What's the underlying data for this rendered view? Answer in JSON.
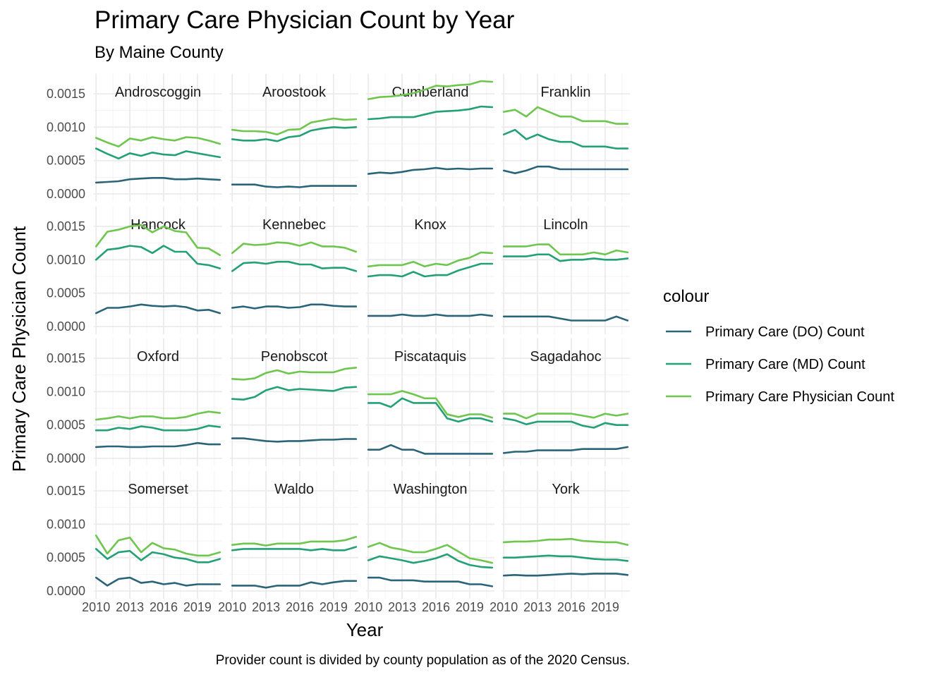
{
  "chart_data": {
    "type": "line",
    "title": "Primary Care Physician Count by Year",
    "subtitle": "By Maine County",
    "xlabel": "Year",
    "ylabel": "Primary Care Physician Count",
    "caption": "Provider count is divided by county population as of the 2020 Census.",
    "legend_title": "colour",
    "legend_position": "right",
    "grid": true,
    "x": [
      2010,
      2011,
      2012,
      2013,
      2014,
      2015,
      2016,
      2017,
      2018,
      2019,
      2020,
      2021
    ],
    "xlim": [
      2009.8,
      2021.2
    ],
    "xticks": [
      "2010",
      "2013",
      "2016",
      "2019"
    ],
    "ylim": [
      0,
      0.0018
    ],
    "yticks": [
      "0.0000",
      "0.0005",
      "0.0010",
      "0.0015"
    ],
    "series_names": [
      "Primary Care (DO) Count",
      "Primary Care (MD) Count",
      "Primary Care Physician Count"
    ],
    "series_colors": [
      "#2a6478",
      "#23a078",
      "#6ec64e"
    ],
    "panels": [
      {
        "name": "Androscoggin",
        "do": [
          0.00017,
          0.00018,
          0.00019,
          0.00022,
          0.00023,
          0.00024,
          0.00024,
          0.00022,
          0.00022,
          0.00023,
          0.00022,
          0.00021
        ],
        "md": [
          0.00068,
          0.0006,
          0.00053,
          0.00061,
          0.00057,
          0.00062,
          0.00059,
          0.00058,
          0.00064,
          0.00061,
          0.00058,
          0.00055
        ],
        "total": [
          0.00084,
          0.00077,
          0.00071,
          0.00083,
          0.0008,
          0.00085,
          0.00082,
          0.0008,
          0.00085,
          0.00084,
          0.0008,
          0.00075
        ]
      },
      {
        "name": "Aroostook",
        "do": [
          0.00014,
          0.00014,
          0.00014,
          0.00011,
          0.0001,
          0.00011,
          0.0001,
          0.00012,
          0.00012,
          0.00012,
          0.00012,
          0.00012
        ],
        "md": [
          0.00082,
          0.0008,
          0.0008,
          0.00082,
          0.00079,
          0.00085,
          0.00087,
          0.00095,
          0.00098,
          0.001,
          0.00099,
          0.001
        ],
        "total": [
          0.00096,
          0.00094,
          0.00094,
          0.00093,
          0.00089,
          0.00096,
          0.00097,
          0.00107,
          0.0011,
          0.00113,
          0.00111,
          0.00112
        ]
      },
      {
        "name": "Cumberland",
        "do": [
          0.0003,
          0.00032,
          0.00031,
          0.00033,
          0.00036,
          0.00037,
          0.00039,
          0.00037,
          0.00038,
          0.00037,
          0.00038,
          0.00038
        ],
        "md": [
          0.00112,
          0.00113,
          0.00115,
          0.00115,
          0.00115,
          0.00119,
          0.00123,
          0.00124,
          0.00125,
          0.00127,
          0.00131,
          0.0013
        ],
        "total": [
          0.00142,
          0.00145,
          0.00146,
          0.00148,
          0.00151,
          0.00156,
          0.00162,
          0.00161,
          0.00163,
          0.00164,
          0.00169,
          0.00168
        ]
      },
      {
        "name": "Franklin",
        "do": [
          0.00035,
          0.00031,
          0.00035,
          0.00041,
          0.00041,
          0.00037,
          0.00037,
          0.00037,
          0.00037,
          0.00037,
          0.00037,
          0.00037
        ],
        "md": [
          0.00089,
          0.00096,
          0.00082,
          0.00089,
          0.00082,
          0.00078,
          0.00078,
          0.00071,
          0.00071,
          0.00071,
          0.00068,
          0.00068
        ],
        "total": [
          0.00123,
          0.00126,
          0.00116,
          0.0013,
          0.00123,
          0.00116,
          0.00116,
          0.00109,
          0.00109,
          0.00109,
          0.00105,
          0.00105
        ]
      },
      {
        "name": "Hancock",
        "do": [
          0.0002,
          0.00028,
          0.00028,
          0.0003,
          0.00033,
          0.00031,
          0.0003,
          0.00031,
          0.00029,
          0.00024,
          0.00025,
          0.0002
        ],
        "md": [
          0.001,
          0.00115,
          0.00117,
          0.00121,
          0.00119,
          0.0011,
          0.00121,
          0.00112,
          0.00112,
          0.00094,
          0.00092,
          0.00087
        ],
        "total": [
          0.0012,
          0.00142,
          0.00145,
          0.0015,
          0.00152,
          0.00141,
          0.0015,
          0.00143,
          0.00141,
          0.00118,
          0.00117,
          0.00107
        ]
      },
      {
        "name": "Kennebec",
        "do": [
          0.00028,
          0.0003,
          0.00027,
          0.0003,
          0.0003,
          0.00028,
          0.00029,
          0.00033,
          0.00033,
          0.00031,
          0.0003,
          0.0003
        ],
        "md": [
          0.00083,
          0.00095,
          0.00096,
          0.00094,
          0.00097,
          0.00097,
          0.00093,
          0.00093,
          0.00087,
          0.00088,
          0.00088,
          0.00083
        ],
        "total": [
          0.0011,
          0.00124,
          0.00122,
          0.00123,
          0.00126,
          0.00125,
          0.00121,
          0.00126,
          0.0012,
          0.0012,
          0.00118,
          0.00112
        ]
      },
      {
        "name": "Knox",
        "do": [
          0.00016,
          0.00016,
          0.00016,
          0.00018,
          0.00016,
          0.00016,
          0.00018,
          0.00016,
          0.00016,
          0.00016,
          0.00018,
          0.00016
        ],
        "md": [
          0.00075,
          0.00077,
          0.00077,
          0.00075,
          0.00082,
          0.00075,
          0.00077,
          0.00077,
          0.00084,
          0.00089,
          0.00094,
          0.00094
        ],
        "total": [
          0.0009,
          0.00092,
          0.00092,
          0.00092,
          0.00097,
          0.0009,
          0.00094,
          0.00092,
          0.00099,
          0.00103,
          0.00111,
          0.0011
        ]
      },
      {
        "name": "Lincoln",
        "do": [
          0.00015,
          0.00015,
          0.00015,
          0.00015,
          0.00015,
          0.00012,
          9e-05,
          9e-05,
          9e-05,
          9e-05,
          0.00015,
          9e-05
        ],
        "md": [
          0.00105,
          0.00105,
          0.00105,
          0.00108,
          0.00108,
          0.00098,
          0.001,
          0.001,
          0.00102,
          0.001,
          0.001,
          0.00102
        ],
        "total": [
          0.0012,
          0.0012,
          0.0012,
          0.00123,
          0.00123,
          0.00108,
          0.00108,
          0.00108,
          0.00111,
          0.00108,
          0.00114,
          0.00111
        ]
      },
      {
        "name": "Oxford",
        "do": [
          0.00017,
          0.00018,
          0.00018,
          0.00017,
          0.00017,
          0.00018,
          0.00018,
          0.00018,
          0.0002,
          0.00023,
          0.00021,
          0.00021
        ],
        "md": [
          0.00042,
          0.00042,
          0.00046,
          0.00044,
          0.00048,
          0.00046,
          0.00042,
          0.00042,
          0.00042,
          0.00044,
          0.00049,
          0.00047
        ],
        "total": [
          0.00058,
          0.0006,
          0.00063,
          0.0006,
          0.00063,
          0.00063,
          0.0006,
          0.0006,
          0.00062,
          0.00067,
          0.0007,
          0.00068
        ]
      },
      {
        "name": "Penobscot",
        "do": [
          0.0003,
          0.0003,
          0.00028,
          0.00026,
          0.00025,
          0.00026,
          0.00026,
          0.00027,
          0.00028,
          0.00028,
          0.00029,
          0.00029
        ],
        "md": [
          0.00089,
          0.00088,
          0.00092,
          0.00102,
          0.00107,
          0.00102,
          0.00104,
          0.00103,
          0.00102,
          0.00101,
          0.00106,
          0.00107
        ],
        "total": [
          0.00119,
          0.00118,
          0.0012,
          0.00128,
          0.00132,
          0.00127,
          0.0013,
          0.00129,
          0.00129,
          0.00129,
          0.00134,
          0.00136
        ]
      },
      {
        "name": "Piscataquis",
        "do": [
          0.00013,
          0.00013,
          0.0002,
          0.00013,
          0.00013,
          7e-05,
          7e-05,
          7e-05,
          7e-05,
          7e-05,
          7e-05,
          7e-05
        ],
        "md": [
          0.00083,
          0.00083,
          0.00077,
          0.0009,
          0.00083,
          0.00083,
          0.00083,
          0.0006,
          0.00055,
          0.0006,
          0.0006,
          0.00055
        ],
        "total": [
          0.00096,
          0.00096,
          0.00096,
          0.00101,
          0.00096,
          0.0009,
          0.0009,
          0.00066,
          0.00062,
          0.00066,
          0.00066,
          0.00061
        ]
      },
      {
        "name": "Sagadahoc",
        "do": [
          8e-05,
          0.0001,
          0.0001,
          0.00012,
          0.00012,
          0.00012,
          0.00012,
          0.00014,
          0.00014,
          0.00014,
          0.00014,
          0.00017
        ],
        "md": [
          0.0006,
          0.00057,
          0.00051,
          0.00055,
          0.00055,
          0.00055,
          0.00055,
          0.00049,
          0.00046,
          0.00053,
          0.0005,
          0.0005
        ],
        "total": [
          0.00067,
          0.00067,
          0.0006,
          0.00067,
          0.00067,
          0.00067,
          0.00067,
          0.00064,
          0.00061,
          0.00067,
          0.00064,
          0.00067
        ]
      },
      {
        "name": "Somerset",
        "do": [
          0.0002,
          8e-05,
          0.00018,
          0.0002,
          0.00012,
          0.00014,
          0.0001,
          0.00012,
          8e-05,
          0.0001,
          0.0001,
          0.0001
        ],
        "md": [
          0.00063,
          0.00048,
          0.00058,
          0.0006,
          0.00046,
          0.00058,
          0.00055,
          0.0005,
          0.00048,
          0.00043,
          0.00043,
          0.00048
        ],
        "total": [
          0.00083,
          0.00056,
          0.00076,
          0.0008,
          0.00058,
          0.00072,
          0.00064,
          0.00062,
          0.00056,
          0.00053,
          0.00053,
          0.00058
        ]
      },
      {
        "name": "Waldo",
        "do": [
          8e-05,
          8e-05,
          8e-05,
          5e-05,
          8e-05,
          8e-05,
          8e-05,
          0.00013,
          0.0001,
          0.00013,
          0.00015,
          0.00015
        ],
        "md": [
          0.00061,
          0.00063,
          0.00063,
          0.00063,
          0.00063,
          0.00063,
          0.00063,
          0.00061,
          0.00063,
          0.00061,
          0.00061,
          0.00066
        ],
        "total": [
          0.00069,
          0.00071,
          0.00071,
          0.00068,
          0.00071,
          0.00071,
          0.00071,
          0.00074,
          0.00074,
          0.00074,
          0.00076,
          0.00081
        ]
      },
      {
        "name": "Washington",
        "do": [
          0.0002,
          0.0002,
          0.00016,
          0.00016,
          0.00016,
          0.00014,
          0.00014,
          0.00014,
          0.00014,
          0.0001,
          0.0001,
          7e-05
        ],
        "md": [
          0.00046,
          0.00052,
          0.00049,
          0.00046,
          0.00042,
          0.00045,
          0.00049,
          0.00055,
          0.00045,
          0.00039,
          0.00036,
          0.00035
        ],
        "total": [
          0.00066,
          0.00072,
          0.00065,
          0.00062,
          0.00058,
          0.00058,
          0.00063,
          0.00069,
          0.00059,
          0.00049,
          0.00046,
          0.00042
        ]
      },
      {
        "name": "York",
        "do": [
          0.00023,
          0.00024,
          0.00023,
          0.00023,
          0.00024,
          0.00025,
          0.00026,
          0.00025,
          0.00026,
          0.00026,
          0.00026,
          0.00024
        ],
        "md": [
          0.0005,
          0.0005,
          0.00051,
          0.00052,
          0.00053,
          0.00052,
          0.00052,
          0.0005,
          0.00048,
          0.00047,
          0.00047,
          0.00045
        ],
        "total": [
          0.00073,
          0.00074,
          0.00074,
          0.00075,
          0.00077,
          0.00077,
          0.00078,
          0.00075,
          0.00074,
          0.00073,
          0.00073,
          0.00069
        ]
      }
    ]
  }
}
